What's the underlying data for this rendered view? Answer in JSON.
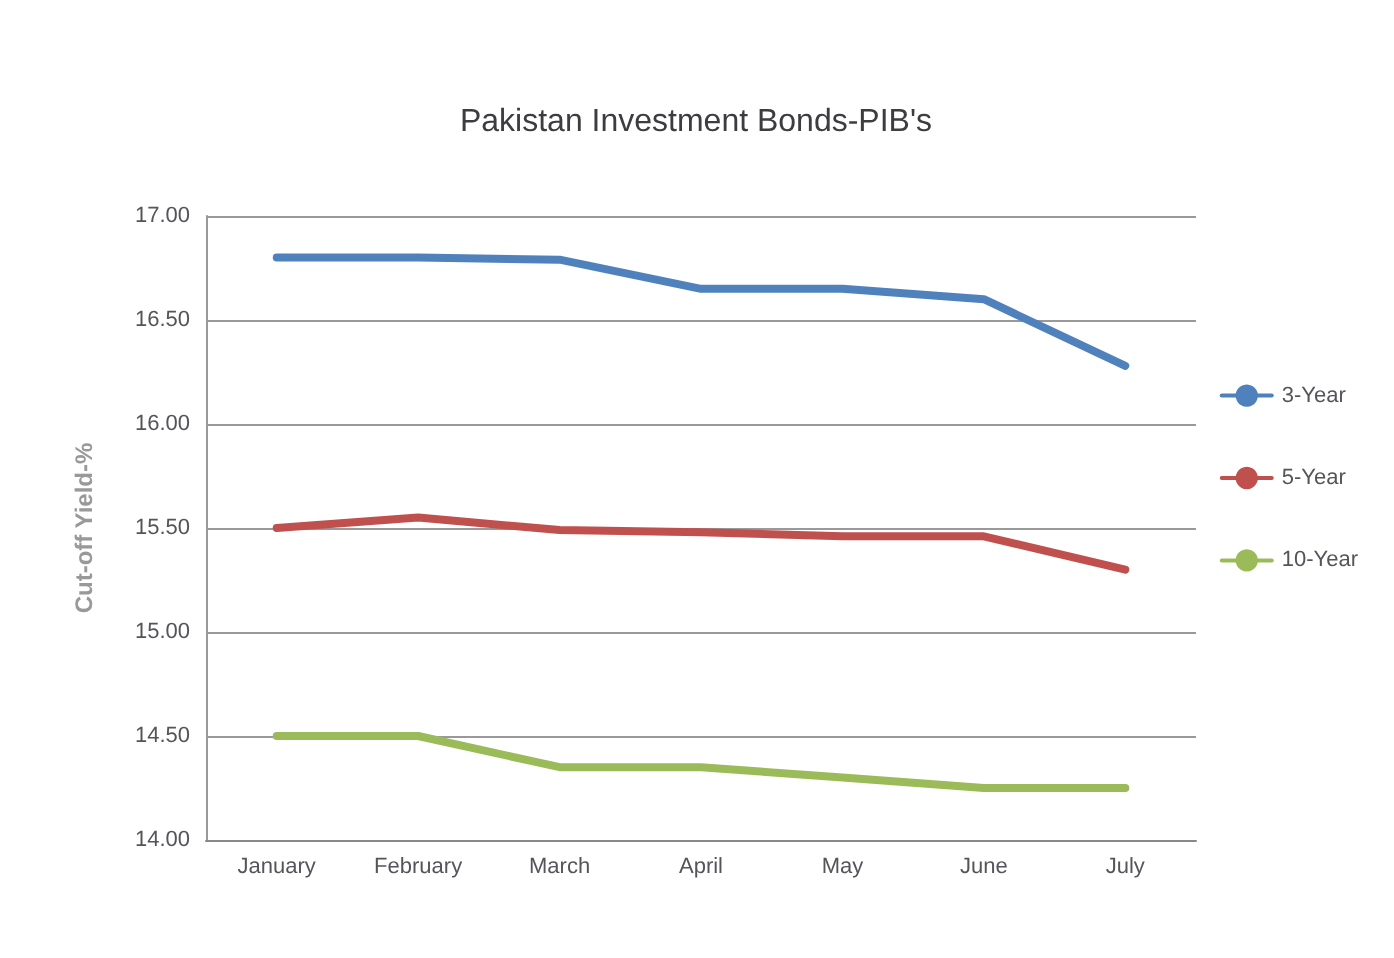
{
  "chart_data": {
    "type": "line",
    "title": "Pakistan Investment Bonds-PIB's",
    "ylabel": "Cut-off Yield-%",
    "categories": [
      "January",
      "February",
      "March",
      "April",
      "May",
      "June",
      "July"
    ],
    "series": [
      {
        "name": "3-Year",
        "color": "#4f81bd",
        "values": [
          16.8,
          16.8,
          16.79,
          16.65,
          16.65,
          16.6,
          16.28
        ]
      },
      {
        "name": "5-Year",
        "color": "#c0504d",
        "values": [
          15.5,
          15.55,
          15.49,
          15.48,
          15.46,
          15.46,
          15.3
        ]
      },
      {
        "name": "10-Year",
        "color": "#9bbb59",
        "values": [
          14.5,
          14.5,
          14.35,
          14.35,
          14.3,
          14.25,
          14.25
        ]
      }
    ],
    "ylim": [
      14,
      17
    ],
    "yticks": [
      {
        "value": 14,
        "label": "14.00"
      },
      {
        "value": 14.5,
        "label": "14.50"
      },
      {
        "value": 15,
        "label": "15.00"
      },
      {
        "value": 15.5,
        "label": "15.50"
      },
      {
        "value": 16,
        "label": "16.00"
      },
      {
        "value": 16.5,
        "label": "16.50"
      },
      {
        "value": 17,
        "label": "17.00"
      }
    ],
    "grid": "y",
    "legend": "right",
    "marker": "none"
  }
}
